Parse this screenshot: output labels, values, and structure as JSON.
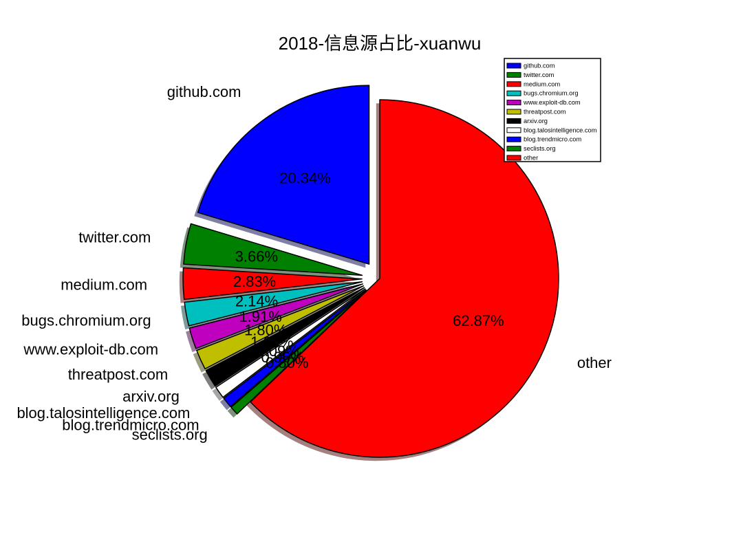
{
  "chart_data": {
    "type": "pie",
    "title": "2018-信息源占比-xuanwu",
    "categories": [
      "github.com",
      "twitter.com",
      "medium.com",
      "bugs.chromium.org",
      "www.exploit-db.com",
      "threatpost.com",
      "arxiv.org",
      "blog.talosintelligence.com",
      "blog.trendmicro.com",
      "seclists.org",
      "other"
    ],
    "values": [
      20.34,
      3.66,
      2.83,
      2.14,
      1.91,
      1.8,
      1.6,
      1.09,
      0.96,
      0.8,
      62.87
    ],
    "value_labels": [
      "20.34%",
      "3.66%",
      "2.83%",
      "2.14%",
      "1.91%",
      "1.80%",
      "1.60%",
      "1.09%",
      "0.96%",
      "0.80%",
      "62.87%"
    ],
    "colors": [
      "#0000ff",
      "#008000",
      "#ff0000",
      "#00bfbf",
      "#bf00bf",
      "#bfbf00",
      "#000000",
      "#ffffff",
      "#0000ff",
      "#008000",
      "#ff0000"
    ],
    "legend": {
      "placement": "top-right"
    }
  }
}
